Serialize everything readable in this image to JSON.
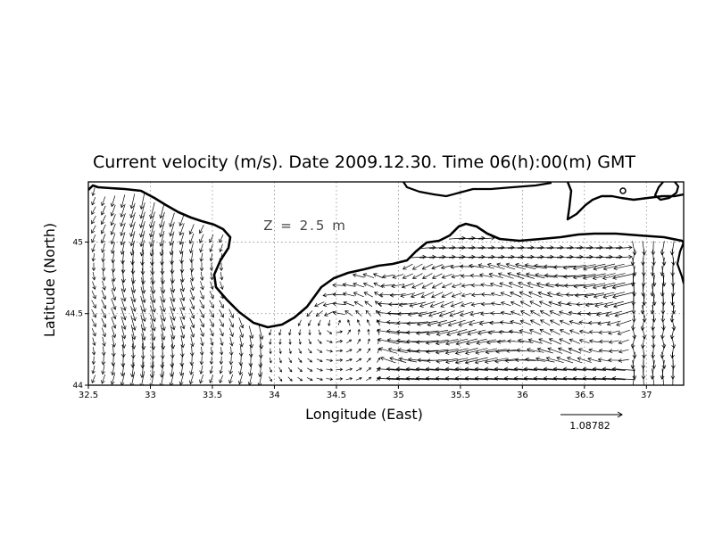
{
  "chart_data": {
    "type": "vector-field-map",
    "title": "Current velocity (m/s). Date 2009.12.30. Time 06(h):00(m) GMT",
    "annotation": "Z = 2.5 m",
    "xlabel": "Longitude (East)",
    "ylabel": "Latitude (North)",
    "xlim": [
      32.5,
      37.3
    ],
    "ylim": [
      44.0,
      45.42
    ],
    "x_ticks": [
      "32.5",
      "33",
      "33.5",
      "34",
      "34.5",
      "35",
      "35.5",
      "36",
      "36.5",
      "37"
    ],
    "y_ticks": [
      "44",
      "44.5",
      "45"
    ],
    "grid": true,
    "reference_vector_label": "1.08782",
    "colors": {
      "ink": "#000000",
      "grid": "#8c8c8c",
      "background": "#ffffff"
    }
  }
}
